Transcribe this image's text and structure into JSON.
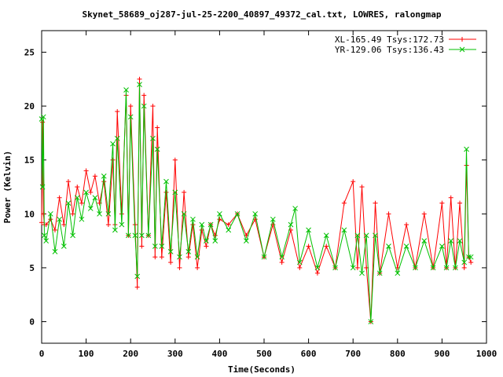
{
  "chart_data": {
    "type": "line",
    "title": "Skynet_58689_oj287-jul-25-2200_40897_49372_cal.txt, LOWRES, ralongmap",
    "xlabel": "Time(Seconds)",
    "ylabel": "Power (Kelvin)",
    "xlim": [
      0,
      1000
    ],
    "ylim": [
      -2,
      27
    ],
    "x_ticks": [
      0,
      100,
      200,
      300,
      400,
      500,
      600,
      700,
      800,
      900,
      1000
    ],
    "y_ticks": [
      0,
      5,
      10,
      15,
      20,
      25
    ],
    "x_tick_labels": [
      "0",
      "100",
      "200",
      "300",
      "400",
      "500",
      "600",
      "700",
      "800",
      "900",
      "1000"
    ],
    "y_tick_labels": [
      "0",
      "5",
      "10",
      "15",
      "20",
      "25"
    ],
    "grid": false,
    "legend_position": "top-right",
    "series": [
      {
        "name": "XL-165.49 Tsys:172.73",
        "color": "#ff0000",
        "marker": "plus",
        "x": [
          0,
          2,
          4,
          6,
          10,
          20,
          30,
          40,
          50,
          60,
          70,
          80,
          90,
          100,
          110,
          120,
          130,
          140,
          150,
          160,
          165,
          170,
          180,
          190,
          195,
          200,
          210,
          215,
          220,
          225,
          230,
          240,
          250,
          255,
          260,
          270,
          280,
          290,
          300,
          310,
          320,
          330,
          340,
          350,
          360,
          370,
          380,
          390,
          400,
          420,
          440,
          460,
          480,
          500,
          520,
          540,
          560,
          580,
          600,
          620,
          640,
          660,
          680,
          700,
          710,
          720,
          730,
          740,
          750,
          760,
          780,
          800,
          820,
          840,
          860,
          880,
          900,
          910,
          920,
          930,
          940,
          950,
          955,
          960,
          965
        ],
        "y": [
          9.2,
          18.5,
          10.0,
          9.0,
          9.0,
          9.5,
          8.5,
          11.5,
          9.0,
          13.0,
          10.0,
          12.5,
          11.0,
          14.0,
          12.0,
          13.5,
          11.0,
          13.0,
          9.0,
          15.0,
          9.0,
          19.5,
          10.0,
          21.0,
          8.0,
          20.0,
          9.0,
          3.2,
          22.5,
          7.0,
          21.0,
          8.0,
          20.0,
          6.0,
          18.0,
          6.0,
          12.0,
          5.5,
          15.0,
          5.0,
          12.0,
          6.0,
          9.0,
          5.0,
          8.5,
          7.0,
          9.0,
          8.0,
          9.5,
          9.0,
          10.0,
          8.0,
          9.5,
          6.0,
          9.0,
          5.5,
          8.5,
          5.0,
          7.0,
          4.5,
          7.0,
          5.0,
          11.0,
          13.0,
          5.0,
          12.5,
          5.0,
          0.0,
          11.0,
          4.5,
          10.0,
          5.0,
          9.0,
          5.0,
          10.0,
          5.0,
          11.0,
          5.0,
          11.5,
          5.0,
          11.0,
          5.0,
          14.5,
          6.0,
          5.5
        ]
      },
      {
        "name": "YR-129.06 Tsys:136.43",
        "color": "#00c000",
        "marker": "cross",
        "x": [
          0,
          2,
          4,
          6,
          10,
          20,
          30,
          40,
          50,
          60,
          70,
          80,
          90,
          100,
          110,
          120,
          130,
          140,
          150,
          160,
          165,
          170,
          180,
          190,
          195,
          200,
          210,
          215,
          220,
          225,
          230,
          240,
          250,
          255,
          260,
          270,
          280,
          290,
          300,
          310,
          320,
          330,
          340,
          350,
          360,
          370,
          380,
          390,
          400,
          420,
          440,
          460,
          480,
          500,
          520,
          540,
          560,
          570,
          580,
          600,
          620,
          640,
          660,
          680,
          700,
          710,
          720,
          730,
          740,
          750,
          760,
          780,
          800,
          820,
          840,
          860,
          880,
          900,
          910,
          920,
          930,
          940,
          950,
          955,
          960,
          965
        ],
        "y": [
          18.8,
          12.5,
          19.0,
          8.0,
          7.5,
          10.0,
          6.5,
          9.5,
          7.0,
          11.0,
          8.0,
          11.5,
          9.5,
          12.0,
          10.5,
          11.5,
          10.0,
          13.5,
          10.0,
          16.5,
          8.5,
          17.0,
          9.0,
          21.5,
          8.0,
          19.0,
          8.0,
          4.2,
          22.0,
          8.0,
          20.0,
          8.0,
          17.0,
          7.0,
          16.0,
          7.0,
          13.0,
          6.5,
          12.0,
          6.0,
          10.0,
          6.5,
          9.5,
          6.0,
          9.0,
          7.5,
          9.0,
          7.5,
          10.0,
          8.5,
          10.0,
          7.5,
          10.0,
          6.0,
          9.5,
          6.0,
          9.0,
          10.5,
          5.5,
          8.5,
          5.0,
          8.0,
          5.0,
          8.5,
          5.0,
          8.0,
          4.5,
          8.0,
          0.0,
          8.0,
          4.5,
          7.0,
          4.5,
          7.0,
          5.0,
          7.5,
          5.0,
          7.0,
          5.0,
          7.5,
          5.0,
          7.5,
          5.5,
          16.0,
          6.0,
          6.0
        ]
      }
    ]
  }
}
